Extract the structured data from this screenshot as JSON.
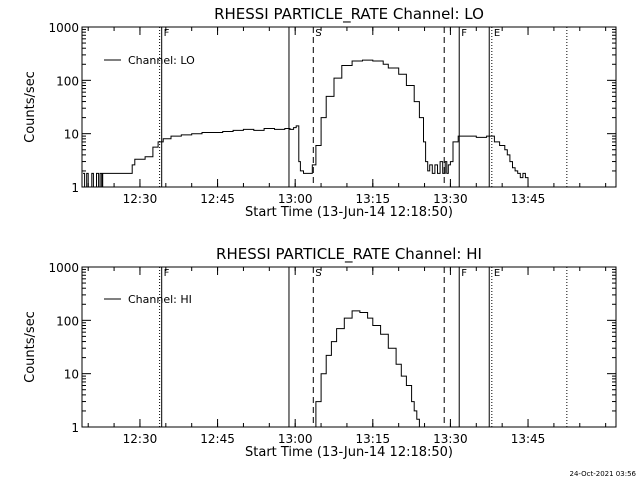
{
  "chart_data": [
    {
      "type": "line",
      "title": "RHESSI PARTICLE_RATE Channel: LO",
      "xlabel": "Start Time (13-Jun-14 12:18:50)",
      "ylabel": "Counts/sec",
      "y_scale": "log",
      "ylim": [
        1,
        1000
      ],
      "y_ticks": [
        {
          "v": 1,
          "label": "1"
        },
        {
          "v": 10,
          "label": "10"
        },
        {
          "v": 100,
          "label": "100"
        },
        {
          "v": 1000,
          "label": "1000"
        }
      ],
      "x_ticks": [
        {
          "v": 750,
          "label": "12:30"
        },
        {
          "v": 765,
          "label": "12:45"
        },
        {
          "v": 780,
          "label": "13:00"
        },
        {
          "v": 795,
          "label": "13:15"
        },
        {
          "v": 810,
          "label": "13:30"
        },
        {
          "v": 825,
          "label": "13:45"
        }
      ],
      "xlim_minutes": [
        738.8,
        842
      ],
      "legend": {
        "label": "Channel: LO",
        "position": "top-left"
      },
      "markers": [
        {
          "x": 753.8,
          "style": "dotted"
        },
        {
          "x": 754.2,
          "style": "solid",
          "label": "F"
        },
        {
          "x": 778.8,
          "style": "solid"
        },
        {
          "x": 783.5,
          "style": "dashed",
          "label": "S"
        },
        {
          "x": 808.8,
          "style": "dashed"
        },
        {
          "x": 811.7,
          "style": "solid",
          "label": "F"
        },
        {
          "x": 817.5,
          "style": "solid"
        },
        {
          "x": 818.0,
          "style": "dotted",
          "label": "E"
        },
        {
          "x": 832.5,
          "style": "dotted"
        }
      ],
      "series": [
        {
          "name": "Channel: LO",
          "x": [
            739.0,
            739.3,
            739.7,
            740.0,
            740.3,
            740.7,
            741.0,
            741.3,
            741.6,
            742.0,
            742.3,
            742.6,
            742.8,
            743.1,
            743.5,
            745.0,
            747.0,
            748.5,
            749.0,
            751.0,
            752.5,
            753.5,
            754.5,
            756.0,
            758.0,
            760.0,
            762.0,
            764.0,
            766.0,
            768.0,
            770.0,
            772.0,
            774.0,
            776.0,
            778.0,
            779.0,
            779.7,
            780.2,
            780.7,
            781.0,
            781.6,
            782.4,
            783.3,
            784.0,
            785.0,
            786.0,
            787.5,
            789.0,
            791.0,
            793.0,
            795.0,
            797.0,
            798.0,
            800.0,
            801.5,
            803.0,
            804.0,
            804.8,
            805.2,
            805.6,
            806.0,
            806.5,
            807.0,
            807.5,
            808.0,
            808.5,
            809.0,
            809.3,
            809.6,
            810.0,
            810.5,
            811.5,
            813.0,
            815.0,
            817.0,
            818.5,
            819.5,
            820.5,
            821.0,
            821.5,
            822.0,
            822.5,
            823.0,
            823.5,
            824.0,
            824.5,
            825.0
          ],
          "y": [
            1.8,
            1.0,
            1.8,
            1.0,
            1.0,
            1.8,
            1.0,
            1.0,
            1.8,
            1.0,
            1.8,
            1.0,
            1.8,
            1.8,
            1.8,
            1.8,
            1.8,
            2.6,
            3.3,
            3.7,
            5.6,
            7.0,
            8.0,
            9.0,
            9.5,
            10.0,
            10.5,
            10.5,
            11.0,
            11.5,
            12.0,
            11.5,
            12.5,
            12.0,
            12.5,
            12.0,
            13.0,
            14.0,
            3.0,
            2.0,
            1.8,
            1.8,
            2.6,
            6.0,
            20.0,
            50.0,
            110.0,
            190.0,
            230.0,
            240.0,
            230.0,
            200.0,
            170.0,
            130.0,
            80.0,
            40.0,
            20.0,
            7.0,
            3.0,
            2.0,
            2.6,
            1.8,
            2.6,
            1.8,
            3.0,
            1.8,
            3.0,
            1.8,
            2.6,
            3.0,
            7.0,
            9.0,
            9.0,
            8.5,
            9.0,
            7.0,
            6.0,
            5.0,
            4.0,
            3.0,
            2.3,
            2.0,
            1.8,
            1.5,
            1.8,
            1.5,
            1.0
          ]
        }
      ]
    },
    {
      "type": "line",
      "title": "RHESSI PARTICLE_RATE Channel: HI",
      "xlabel": "Start Time (13-Jun-14 12:18:50)",
      "ylabel": "Counts/sec",
      "y_scale": "log",
      "ylim": [
        1,
        1000
      ],
      "y_ticks": [
        {
          "v": 1,
          "label": "1"
        },
        {
          "v": 10,
          "label": "10"
        },
        {
          "v": 100,
          "label": "100"
        },
        {
          "v": 1000,
          "label": "1000"
        }
      ],
      "x_ticks": [
        {
          "v": 750,
          "label": "12:30"
        },
        {
          "v": 765,
          "label": "12:45"
        },
        {
          "v": 780,
          "label": "13:00"
        },
        {
          "v": 795,
          "label": "13:15"
        },
        {
          "v": 810,
          "label": "13:30"
        },
        {
          "v": 825,
          "label": "13:45"
        }
      ],
      "xlim_minutes": [
        738.8,
        842
      ],
      "legend": {
        "label": "Channel: HI",
        "position": "top-left"
      },
      "markers": [
        {
          "x": 753.8,
          "style": "dotted"
        },
        {
          "x": 754.2,
          "style": "solid",
          "label": "F"
        },
        {
          "x": 778.8,
          "style": "solid"
        },
        {
          "x": 783.5,
          "style": "dashed",
          "label": "S"
        },
        {
          "x": 808.8,
          "style": "dashed"
        },
        {
          "x": 811.7,
          "style": "solid",
          "label": "F"
        },
        {
          "x": 817.5,
          "style": "solid"
        },
        {
          "x": 818.0,
          "style": "dotted",
          "label": "E"
        },
        {
          "x": 832.5,
          "style": "dotted"
        }
      ],
      "series": [
        {
          "name": "Channel: HI",
          "x": [
            783.5,
            784.0,
            785.0,
            786.0,
            787.0,
            788.0,
            789.5,
            791.0,
            792.5,
            794.0,
            795.0,
            796.5,
            798.0,
            799.5,
            800.5,
            801.5,
            802.5,
            803.0,
            803.5,
            804.0
          ],
          "y": [
            1.0,
            3.0,
            10.0,
            22.0,
            40.0,
            70.0,
            110.0,
            150.0,
            140.0,
            110.0,
            80.0,
            55.0,
            30.0,
            15.0,
            9.0,
            6.0,
            3.0,
            2.0,
            1.4,
            1.0
          ]
        }
      ]
    }
  ],
  "timestamp": "24-Oct-2021 03:56"
}
